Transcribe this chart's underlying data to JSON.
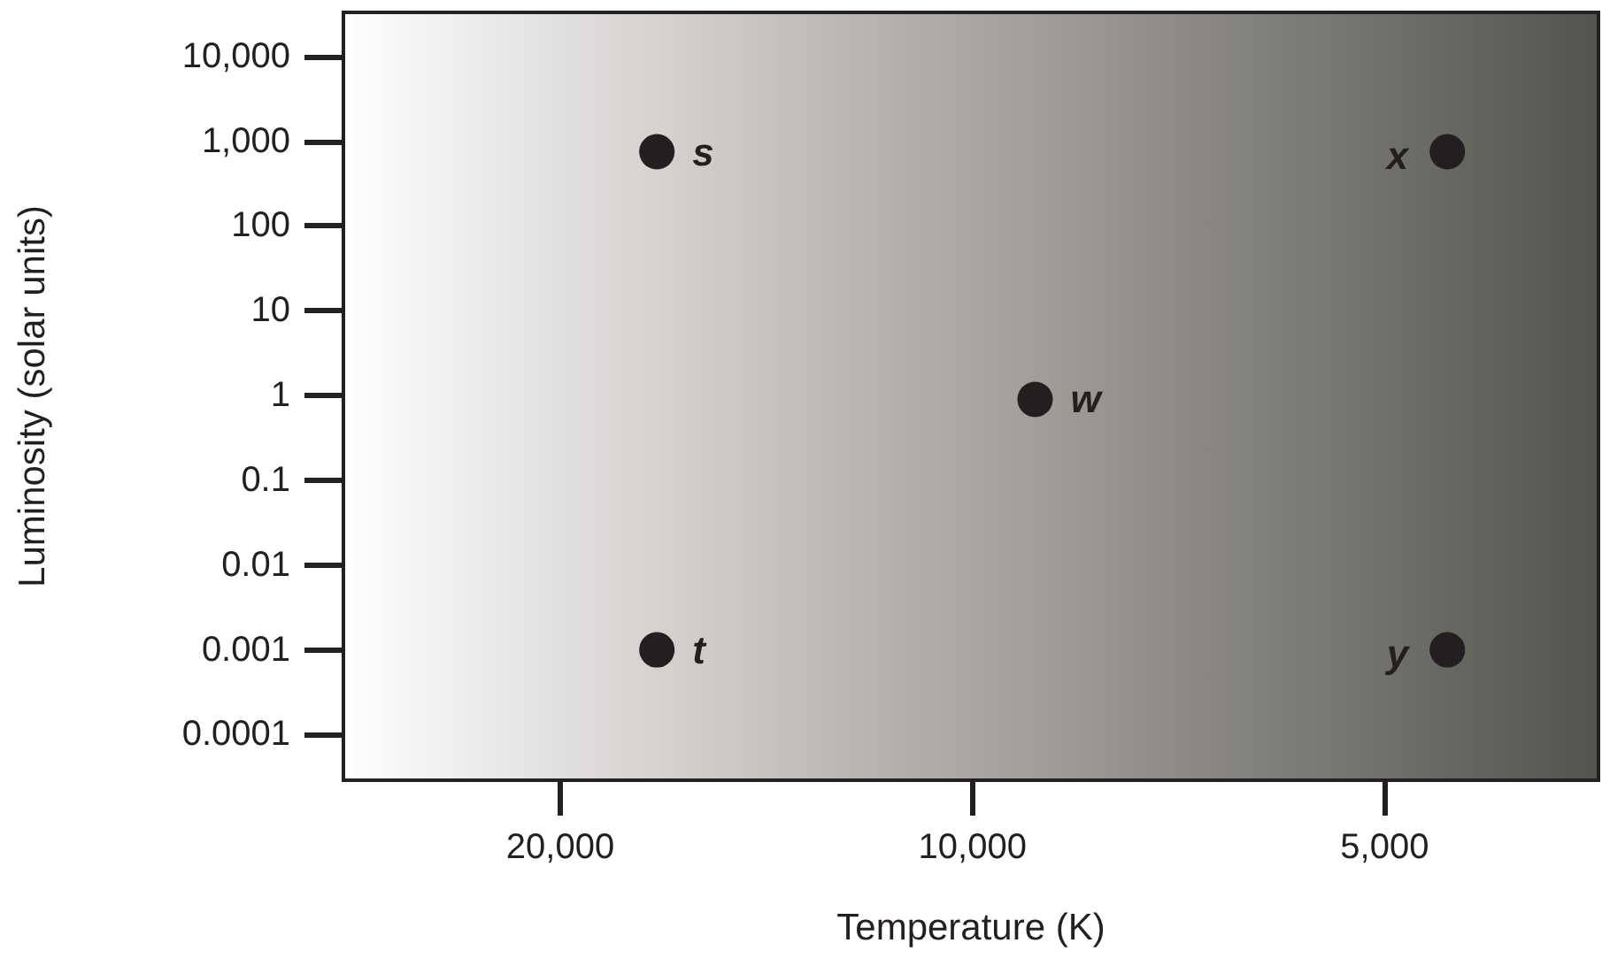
{
  "chart_data": {
    "type": "scatter",
    "xlabel": "Temperature (K)",
    "ylabel": "Luminosity (solar units)",
    "log": "xy",
    "xlim": [
      28800,
      3490
    ],
    "ylim": [
      2.9e-05,
      33000
    ],
    "xticks": [
      {
        "value": 20000,
        "label": "20,000"
      },
      {
        "value": 10000,
        "label": "10,000"
      },
      {
        "value": 5000,
        "label": "5,000"
      }
    ],
    "yticks": [
      {
        "value": 0.0001,
        "label": "0.0001"
      },
      {
        "value": 0.001,
        "label": "0.001"
      },
      {
        "value": 0.01,
        "label": "0.01"
      },
      {
        "value": 0.1,
        "label": "0.1"
      },
      {
        "value": 1,
        "label": "1"
      },
      {
        "value": 10,
        "label": "10"
      },
      {
        "value": 100,
        "label": "100"
      },
      {
        "value": 1000,
        "label": "1,000"
      },
      {
        "value": 10000,
        "label": "10,000"
      }
    ],
    "x": [
      17000,
      17000,
      9000,
      4500,
      4500
    ],
    "values": [
      750,
      0.001,
      0.9,
      750,
      0.001
    ],
    "color": "#231f20",
    "marker": "circle",
    "grid": false,
    "annotations": [
      {
        "text": "s",
        "x": 17000,
        "y": 750
      },
      {
        "text": "t",
        "x": 17000,
        "y": 0.001
      },
      {
        "text": "w",
        "x": 9000,
        "y": 0.9
      },
      {
        "text": "x",
        "x": 4500,
        "y": 750
      },
      {
        "text": "y",
        "x": 4500,
        "y": 0.001
      }
    ]
  }
}
